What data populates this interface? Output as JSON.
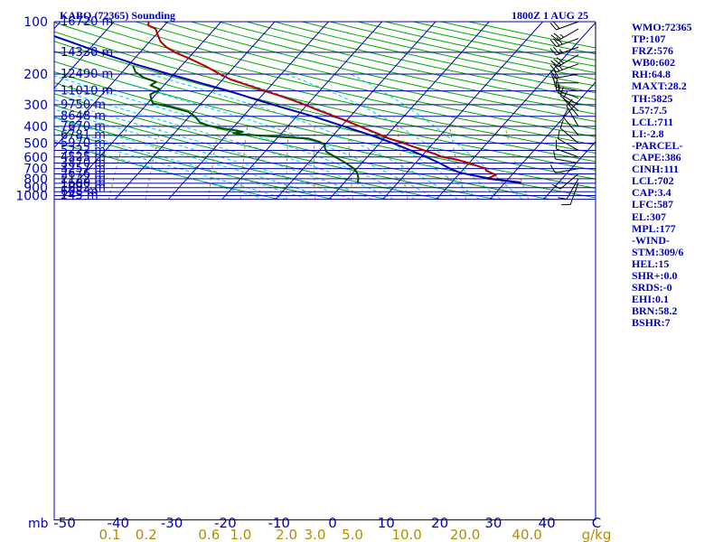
{
  "chart_data": {
    "type": "skew-t",
    "title_left": "KABQ (72365) Sounding",
    "title_right": "1800Z  1 AUG 25",
    "pressure_axis": {
      "unit_label": "mb",
      "ticks": [
        100,
        200,
        300,
        400,
        500,
        600,
        700,
        800,
        900,
        1000
      ],
      "range": [
        1050,
        100
      ]
    },
    "temperature_axis": {
      "ticks": [
        "-50",
        "-40",
        "-30",
        "-20",
        "-10",
        "0",
        "10",
        "20",
        "30",
        "40"
      ],
      "unit_label": "C"
    },
    "mixing_ratio_axis": {
      "ticks": [
        "0.1",
        "0.2",
        "0.6",
        "1.0",
        "2.0",
        "3.0",
        "5.0",
        "10.0",
        "20.0",
        "40.0"
      ],
      "unit_label": "g/kg"
    },
    "height_labels": [
      {
        "p": 100,
        "label": "16720 m"
      },
      {
        "p": 150,
        "label": "14330 m"
      },
      {
        "p": 200,
        "label": "12490 m"
      },
      {
        "p": 250,
        "label": "11010 m"
      },
      {
        "p": 300,
        "label": "9750 m"
      },
      {
        "p": 350,
        "label": "8648 m"
      },
      {
        "p": 400,
        "label": "7670 m"
      },
      {
        "p": 450,
        "label": "6781 m"
      },
      {
        "p": 500,
        "label": "5970 m"
      },
      {
        "p": 550,
        "label": "5222 m"
      },
      {
        "p": 600,
        "label": "4525 m"
      },
      {
        "p": 650,
        "label": "3870 m"
      },
      {
        "p": 700,
        "label": "3257 m"
      },
      {
        "p": 750,
        "label": "2676 m"
      },
      {
        "p": 800,
        "label": "2122 m"
      },
      {
        "p": 850,
        "label": "1600 m"
      },
      {
        "p": 900,
        "label": "1092 m"
      },
      {
        "p": 950,
        "label": "608 m"
      },
      {
        "p": 1000,
        "label": "145 m"
      }
    ],
    "series": [
      {
        "name": "temperature",
        "color": "#b40000",
        "points": [
          {
            "p": 842,
            "t": 33
          },
          {
            "p": 800,
            "t": 26
          },
          {
            "p": 760,
            "t": 27
          },
          {
            "p": 720,
            "t": 24.5
          },
          {
            "p": 700,
            "t": 24
          },
          {
            "p": 675,
            "t": 22
          },
          {
            "p": 650,
            "t": 20
          },
          {
            "p": 620,
            "t": 17
          },
          {
            "p": 600,
            "t": 14
          },
          {
            "p": 575,
            "t": 12
          },
          {
            "p": 550,
            "t": 9.5
          },
          {
            "p": 520,
            "t": 6.5
          },
          {
            "p": 500,
            "t": 4.5
          },
          {
            "p": 470,
            "t": 1
          },
          {
            "p": 440,
            "t": -2
          },
          {
            "p": 400,
            "t": -6.5
          },
          {
            "p": 380,
            "t": -9
          },
          {
            "p": 350,
            "t": -13
          },
          {
            "p": 320,
            "t": -17.5
          },
          {
            "p": 300,
            "t": -20.5
          },
          {
            "p": 280,
            "t": -24
          },
          {
            "p": 260,
            "t": -28
          },
          {
            "p": 240,
            "t": -32.5
          },
          {
            "p": 225,
            "t": -36
          },
          {
            "p": 215,
            "t": -38.5
          },
          {
            "p": 200,
            "t": -41.5
          },
          {
            "p": 180,
            "t": -45.5
          },
          {
            "p": 160,
            "t": -50.5
          },
          {
            "p": 150,
            "t": -53.5
          },
          {
            "p": 140,
            "t": -56
          },
          {
            "p": 130,
            "t": -58
          },
          {
            "p": 120,
            "t": -59.5
          },
          {
            "p": 110,
            "t": -61
          },
          {
            "p": 105,
            "t": -63
          },
          {
            "p": 100,
            "t": -63.5
          }
        ]
      },
      {
        "name": "dewpoint",
        "color": "#005000",
        "points": [
          {
            "p": 842,
            "t": 2.5
          },
          {
            "p": 800,
            "t": 2
          },
          {
            "p": 750,
            "t": 1
          },
          {
            "p": 700,
            "t": -0.5
          },
          {
            "p": 650,
            "t": -3
          },
          {
            "p": 600,
            "t": -6
          },
          {
            "p": 560,
            "t": -8.5
          },
          {
            "p": 530,
            "t": -9.5
          },
          {
            "p": 510,
            "t": -10
          },
          {
            "p": 490,
            "t": -11.5
          },
          {
            "p": 470,
            "t": -14
          },
          {
            "p": 458,
            "t": -20.5
          },
          {
            "p": 445,
            "t": -27
          },
          {
            "p": 438,
            "t": -29
          },
          {
            "p": 430,
            "t": -27.5
          },
          {
            "p": 420,
            "t": -29.5
          },
          {
            "p": 410,
            "t": -32
          },
          {
            "p": 395,
            "t": -35
          },
          {
            "p": 380,
            "t": -37
          },
          {
            "p": 365,
            "t": -38
          },
          {
            "p": 350,
            "t": -39
          },
          {
            "p": 330,
            "t": -41
          },
          {
            "p": 310,
            "t": -45
          },
          {
            "p": 295,
            "t": -49
          },
          {
            "p": 280,
            "t": -50
          },
          {
            "p": 262,
            "t": -51
          },
          {
            "p": 245,
            "t": -50
          },
          {
            "p": 232,
            "t": -52.5
          },
          {
            "p": 222,
            "t": -52
          },
          {
            "p": 210,
            "t": -55
          },
          {
            "p": 195,
            "t": -57.5
          },
          {
            "p": 180,
            "t": -59
          }
        ]
      },
      {
        "name": "parcel",
        "color": "#0000b4",
        "points": [
          {
            "p": 842,
            "t": 33
          },
          {
            "p": 800,
            "t": 26.5
          },
          {
            "p": 740,
            "t": 20
          },
          {
            "p": 702,
            "t": 17.5
          },
          {
            "p": 650,
            "t": 14.5
          },
          {
            "p": 600,
            "t": 11
          },
          {
            "p": 550,
            "t": 7
          },
          {
            "p": 500,
            "t": 2.5
          },
          {
            "p": 450,
            "t": -3
          },
          {
            "p": 400,
            "t": -9.5
          },
          {
            "p": 350,
            "t": -17
          },
          {
            "p": 307,
            "t": -25
          },
          {
            "p": 280,
            "t": -30.5
          },
          {
            "p": 250,
            "t": -37
          },
          {
            "p": 220,
            "t": -45
          },
          {
            "p": 200,
            "t": -51
          },
          {
            "p": 177,
            "t": -58.5
          },
          {
            "p": 150,
            "t": -67.5
          },
          {
            "p": 130,
            "t": -75
          },
          {
            "p": 115,
            "t": -81.5
          }
        ]
      }
    ],
    "dry_adiabats_k": [
      260,
      270,
      280,
      290,
      300,
      310,
      320,
      330,
      340,
      350,
      360,
      370,
      380,
      390,
      400,
      410,
      420,
      430,
      440,
      450,
      460,
      470,
      480,
      490,
      500,
      510,
      520
    ],
    "moist_adiabats_c": [
      -12,
      -8,
      -4,
      0,
      4,
      8,
      12,
      16,
      20,
      24,
      28,
      32,
      36
    ],
    "mixing_ratio_lines_gkg": [
      0.1,
      0.2,
      0.6,
      1,
      2,
      3,
      5,
      10,
      20,
      40
    ],
    "wind_barbs": [
      {
        "p": 100,
        "dir": 250,
        "spd": 20
      },
      {
        "p": 110,
        "dir": 240,
        "spd": 25
      },
      {
        "p": 125,
        "dir": 250,
        "spd": 30
      },
      {
        "p": 140,
        "dir": 250,
        "spd": 25
      },
      {
        "p": 155,
        "dir": 240,
        "spd": 30
      },
      {
        "p": 175,
        "dir": 250,
        "spd": 25
      },
      {
        "p": 200,
        "dir": 260,
        "spd": 20
      },
      {
        "p": 225,
        "dir": 270,
        "spd": 20
      },
      {
        "p": 250,
        "dir": 280,
        "spd": 15
      },
      {
        "p": 275,
        "dir": 290,
        "spd": 15
      },
      {
        "p": 300,
        "dir": 300,
        "spd": 15
      },
      {
        "p": 325,
        "dir": 310,
        "spd": 10
      },
      {
        "p": 350,
        "dir": 320,
        "spd": 10
      },
      {
        "p": 400,
        "dir": 330,
        "spd": 10
      },
      {
        "p": 450,
        "dir": 320,
        "spd": 10
      },
      {
        "p": 500,
        "dir": 310,
        "spd": 10
      },
      {
        "p": 550,
        "dir": 300,
        "spd": 10
      },
      {
        "p": 600,
        "dir": 290,
        "spd": 10
      },
      {
        "p": 650,
        "dir": 280,
        "spd": 10
      },
      {
        "p": 700,
        "dir": 260,
        "spd": 10
      },
      {
        "p": 750,
        "dir": 230,
        "spd": 10
      },
      {
        "p": 800,
        "dir": 210,
        "spd": 10
      },
      {
        "p": 842,
        "dir": 200,
        "spd": 10
      }
    ],
    "indices": [
      "WMO:72365",
      "TP:107",
      "FRZ:576",
      "WB0:602",
      "RH:64.8",
      "MAXT:28.2",
      "TH:5825",
      "L57:7.5",
      "LCL:711",
      "LI:-2.8",
      "-PARCEL-",
      "CAPE:386",
      "CINH:111",
      "LCL:702",
      "CAP:3.4",
      "LFC:587",
      "EL:307",
      "MPL:177",
      "-WIND-",
      "STM:309/6",
      "HEL:15",
      "SHR+:0.0",
      "SRDS:-0",
      "EHI:0.1",
      "BRN:58.2",
      "BSHR:7"
    ],
    "colors": {
      "background": "#ffffff",
      "isobar": "#0000b4",
      "isotherm": "#0000b4",
      "dry_adiabat": "#00aa00",
      "moist_adiabat": "#00c8ff",
      "mixing_ratio": "#b48c00",
      "axis_text": "#0000b4",
      "mixing_text": "#b48c00"
    }
  }
}
